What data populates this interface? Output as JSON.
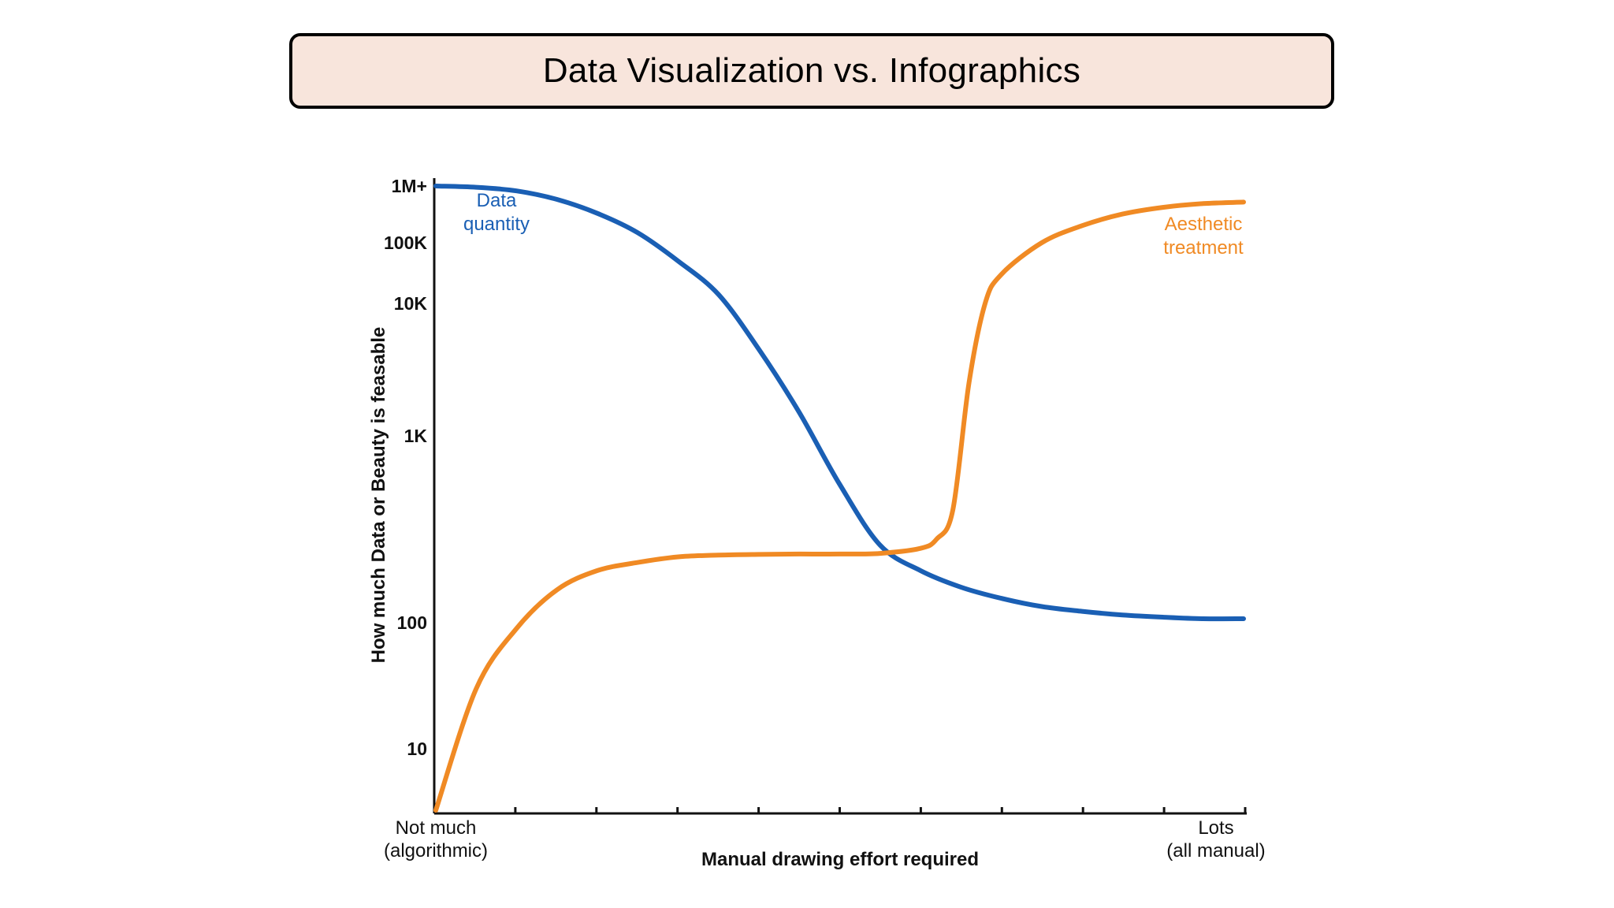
{
  "slide": {
    "title": "Data Visualization vs. Infographics"
  },
  "colors": {
    "title_bg": "#f8e5dc",
    "data_quantity": "#1a5fb4",
    "aesthetic_treatment": "#f08a24"
  },
  "chart_data": {
    "type": "line",
    "title": "",
    "xlabel": "Manual drawing effort required",
    "ylabel": "How much Data or Beauty is feasable",
    "x_tick_count": 10,
    "x_end_labels": {
      "left": [
        "Not much",
        "(algorithmic)"
      ],
      "right": [
        "Lots",
        "(all manual)"
      ]
    },
    "y_ticks": [
      {
        "label": "1M+",
        "value": 1000000
      },
      {
        "label": "100K",
        "value": 100000
      },
      {
        "label": "10K",
        "value": 10000
      },
      {
        "label": "1K",
        "value": 1000
      },
      {
        "label": "100",
        "value": 100
      },
      {
        "label": "10",
        "value": 10
      }
    ],
    "y_scale": "log (uneven spacing)",
    "xlim": [
      0,
      1
    ],
    "grid": false,
    "series": [
      {
        "name": "Data quantity",
        "label_lines": [
          "Data",
          "quantity"
        ],
        "color": "#1a5fb4",
        "x": [
          0.0,
          0.05,
          0.1,
          0.15,
          0.2,
          0.25,
          0.3,
          0.35,
          0.4,
          0.45,
          0.5,
          0.55,
          0.6,
          0.65,
          0.7,
          0.75,
          0.8,
          0.85,
          0.9,
          0.95,
          1.0
        ],
        "y": [
          1000000,
          950000,
          820000,
          580000,
          330000,
          150000,
          50000,
          14000,
          4500,
          1500,
          550,
          260,
          190,
          155,
          135,
          122,
          115,
          110,
          107,
          105,
          105
        ]
      },
      {
        "name": "Aesthetic treatment",
        "label_lines": [
          "Aesthetic",
          "treatment"
        ],
        "color": "#f08a24",
        "x": [
          0.0,
          0.05,
          0.1,
          0.15,
          0.2,
          0.25,
          0.3,
          0.35,
          0.4,
          0.45,
          0.5,
          0.55,
          0.6,
          0.62,
          0.64,
          0.66,
          0.68,
          0.7,
          0.75,
          0.8,
          0.85,
          0.9,
          0.95,
          1.0
        ],
        "y": [
          5,
          30,
          90,
          150,
          190,
          210,
          225,
          230,
          232,
          233,
          233,
          235,
          250,
          280,
          400,
          2500,
          10000,
          30000,
          100000,
          200000,
          320000,
          420000,
          490000,
          520000
        ]
      }
    ]
  }
}
